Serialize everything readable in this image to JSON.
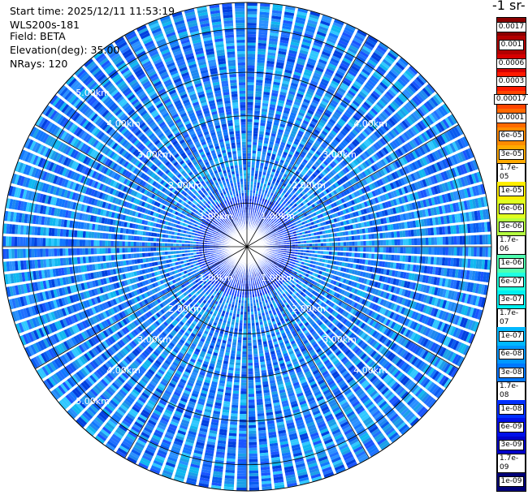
{
  "info": {
    "start_time": "Start time: 2025/12/11 11:53:19",
    "instrument": "WLS200s-181",
    "field": "Field: BETA",
    "elevation": "Elevation(deg): 35.00",
    "nrays": "NRays: 120"
  },
  "colorbar": {
    "title": "-1 sr-",
    "labels": [
      "0.0017",
      "0.001",
      "0.0006",
      "0.0003",
      "0.00017",
      "0.0001",
      "6e-05",
      "3e-05",
      "1.7e-05",
      "1e-05",
      "6e-06",
      "3e-06",
      "1.7e-06",
      "1e-06",
      "6e-07",
      "3e-07",
      "1.7e-07",
      "1e-07",
      "6e-08",
      "3e-08",
      "1.7e-08",
      "1e-08",
      "6e-09",
      "3e-09",
      "1.7e-09",
      "1e-09"
    ],
    "colors": [
      "#8b0000",
      "#b30000",
      "#d60000",
      "#ff1a00",
      "#ff4500",
      "#ff6a00",
      "#ff8c00",
      "#ffaa00",
      "#ffd000",
      "#ffee00",
      "#e0ff20",
      "#b4ff40",
      "#80ff80",
      "#50ffb0",
      "#20ffe0",
      "#00f0f0",
      "#00d8f8",
      "#00b8ff",
      "#0098ff",
      "#0078ff",
      "#0058ff",
      "#0030ff",
      "#0010e8",
      "#0000c8",
      "#0000a0",
      "#000078"
    ]
  },
  "chart_data": {
    "type": "heatmap",
    "projection": "polar PPI",
    "field": "BETA",
    "elevation_deg": 35.0,
    "n_rays": 120,
    "range_rings_km": [
      1,
      2,
      3,
      4,
      5
    ],
    "ring_labels": [
      "1.00km",
      "2.00km",
      "3.00km",
      "4.00km",
      "5.00km"
    ],
    "max_range_km": 5.6,
    "scale": "log",
    "value_range": [
      1e-09,
      0.0017
    ],
    "dominant_value_range": [
      3e-08,
      1e-07
    ]
  }
}
